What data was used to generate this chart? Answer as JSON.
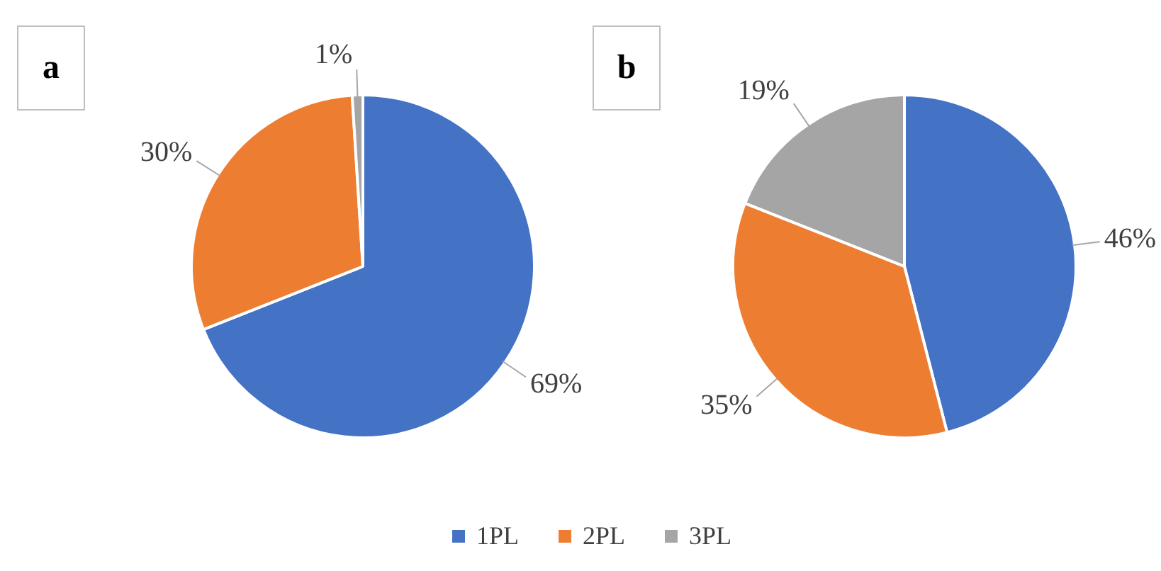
{
  "chart_data": [
    {
      "type": "pie",
      "title": "a",
      "categories": [
        "1PL",
        "2PL",
        "3PL"
      ],
      "values": [
        69,
        30,
        1
      ],
      "colors": [
        "#4472c4",
        "#ed7d31",
        "#a5a5a5"
      ],
      "value_labels": [
        "69%",
        "30%",
        "1%"
      ],
      "legend": "bottom"
    },
    {
      "type": "pie",
      "title": "b",
      "categories": [
        null,
        null,
        null
      ],
      "values": [
        46,
        35,
        19
      ],
      "colors": [
        "#4472c4",
        "#ed7d31",
        "#a5a5a5"
      ],
      "value_labels": [
        "46%",
        "35%",
        "19%"
      ]
    }
  ]
}
